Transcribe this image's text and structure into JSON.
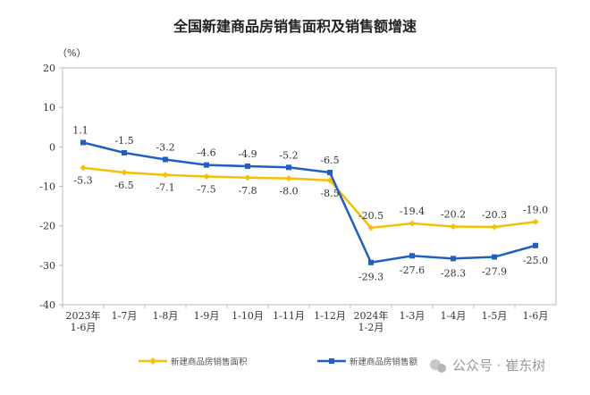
{
  "chart_data": {
    "type": "line",
    "title": "全国新建商品房销售面积及销售额增速",
    "ylabel": "（%）",
    "ylim": [
      -40,
      20
    ],
    "yticks": [
      20,
      10,
      0,
      -10,
      -20,
      -30,
      -40
    ],
    "grid": false,
    "legend_position": "bottom",
    "categories": [
      [
        "2023年",
        "1-6月"
      ],
      [
        "1-7月"
      ],
      [
        "1-8月"
      ],
      [
        "1-9月"
      ],
      [
        "1-10月"
      ],
      [
        "1-11月"
      ],
      [
        "1-12月"
      ],
      [
        "2024年",
        "1-2月"
      ],
      [
        "1-3月"
      ],
      [
        "1-4月"
      ],
      [
        "1-5月"
      ],
      [
        "1-6月"
      ]
    ],
    "series": [
      {
        "name": "新建商品房销售面积",
        "color": "#F5C000",
        "values": [
          -5.3,
          -6.5,
          -7.1,
          -7.5,
          -7.8,
          -8.0,
          -8.5,
          -20.5,
          -19.4,
          -20.2,
          -20.3,
          -19.0
        ]
      },
      {
        "name": "新建商品房销售额",
        "color": "#1F5FC4",
        "values": [
          1.1,
          -1.5,
          -3.2,
          -4.6,
          -4.9,
          -5.2,
          -6.5,
          -29.3,
          -27.6,
          -28.3,
          -27.9,
          -25.0
        ]
      }
    ]
  },
  "watermark": "公众号 · 崔东树"
}
